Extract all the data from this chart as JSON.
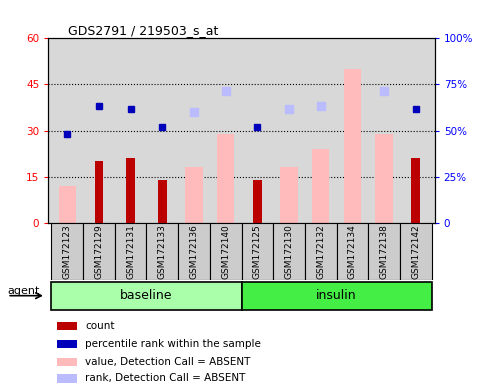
{
  "title": "GDS2791 / 219503_s_at",
  "samples": [
    "GSM172123",
    "GSM172129",
    "GSM172131",
    "GSM172133",
    "GSM172136",
    "GSM172140",
    "GSM172125",
    "GSM172130",
    "GSM172132",
    "GSM172134",
    "GSM172138",
    "GSM172142"
  ],
  "count_values": [
    0,
    20,
    21,
    14,
    0,
    0,
    14,
    0,
    0,
    0,
    0,
    21
  ],
  "pct_rank_values": [
    29,
    38,
    37,
    31,
    null,
    null,
    31,
    null,
    null,
    null,
    null,
    37
  ],
  "value_absent": [
    12,
    null,
    null,
    null,
    18,
    29,
    null,
    18,
    24,
    50,
    29,
    null
  ],
  "rank_absent": [
    null,
    null,
    null,
    null,
    36,
    43,
    null,
    37,
    38,
    null,
    43,
    null
  ],
  "ylim_left": [
    0,
    60
  ],
  "ylim_right": [
    0,
    100
  ],
  "yticks_left": [
    0,
    15,
    30,
    45,
    60
  ],
  "yticks_right": [
    0,
    25,
    50,
    75,
    100
  ],
  "ytick_labels_left": [
    "0",
    "15",
    "30",
    "45",
    "60"
  ],
  "ytick_labels_right": [
    "0",
    "25%",
    "50%",
    "75%",
    "100%"
  ],
  "count_color": "#bb0000",
  "pct_rank_color": "#0000bb",
  "value_absent_color": "#ffbbbb",
  "rank_absent_color": "#bbbbff",
  "baseline_color": "#aaffaa",
  "insulin_color": "#44ee44",
  "background_color": "#d8d8d8",
  "legend_items": [
    "count",
    "percentile rank within the sample",
    "value, Detection Call = ABSENT",
    "rank, Detection Call = ABSENT"
  ],
  "legend_colors": [
    "#bb0000",
    "#0000bb",
    "#ffbbbb",
    "#bbbbff"
  ]
}
